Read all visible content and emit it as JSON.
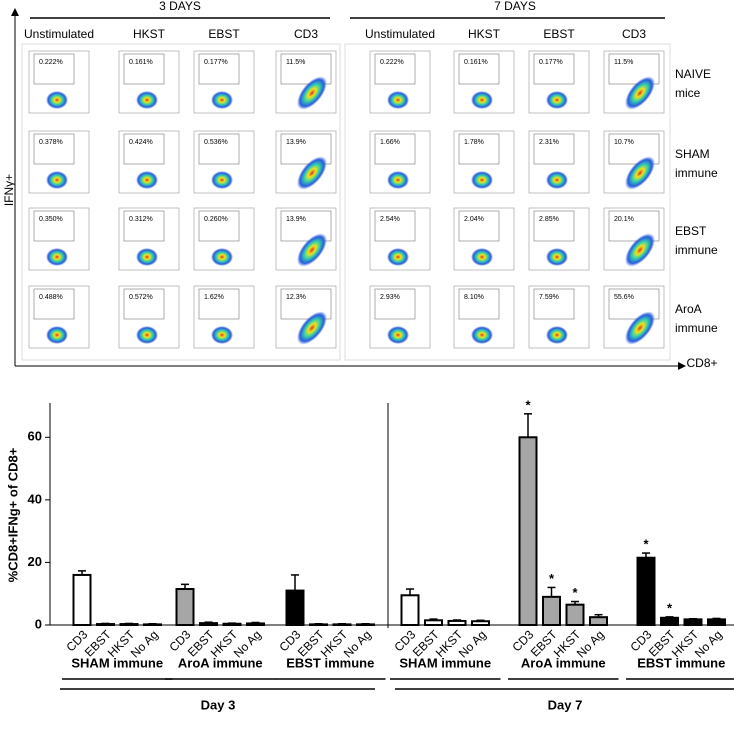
{
  "flow_panel": {
    "y_label": "IFNγ+",
    "x_label": "CD8+",
    "blocks": [
      {
        "title": "3 DAYS",
        "columns": [
          "Unstimulated",
          "HKST",
          "EBST",
          "CD3"
        ]
      },
      {
        "title": "7 DAYS",
        "columns": [
          "Unstimulated",
          "HKST",
          "EBST",
          "CD3"
        ]
      }
    ],
    "rows": [
      {
        "label": [
          "NAIVE",
          "mice"
        ],
        "gates": [
          "0.222%",
          "0.161%",
          "0.177%",
          "11.5%",
          "0.222%",
          "0.161%",
          "0.177%",
          "11.5%"
        ]
      },
      {
        "label": [
          "SHAM",
          "immune"
        ],
        "gates": [
          "0.378%",
          "0.424%",
          "0.536%",
          "13.9%",
          "1.66%",
          "1.78%",
          "2.31%",
          "10.7%"
        ]
      },
      {
        "label": [
          "EBST",
          "immune"
        ],
        "gates": [
          "0.350%",
          "0.312%",
          "0.260%",
          "13.9%",
          "2.54%",
          "2.04%",
          "2.85%",
          "20.1%"
        ]
      },
      {
        "label": [
          "AroA",
          "immune"
        ],
        "gates": [
          "0.488%",
          "0.572%",
          "1.62%",
          "12.3%",
          "2.93%",
          "8.10%",
          "7.59%",
          "55.6%"
        ]
      }
    ]
  },
  "chart_data": {
    "type": "bar",
    "ylabel": "%CD8+IFNg+ of CD8+",
    "ylim": [
      0,
      70
    ],
    "yticks": [
      0,
      20,
      40,
      60
    ],
    "annotation": "*",
    "days": [
      {
        "label": "Day 3",
        "groups": [
          {
            "name": "SHAM immune",
            "color": "#ffffff",
            "categories": [
              "CD3",
              "EBST",
              "HKST",
              "No Ag"
            ],
            "values": [
              16,
              0.3,
              0.3,
              0.2
            ],
            "errors": [
              1.3,
              0.2,
              0.2,
              0.2
            ],
            "starred": [
              false,
              false,
              false,
              false
            ]
          },
          {
            "name": "AroA immune",
            "color": "#a6a6a6",
            "categories": [
              "CD3",
              "EBST",
              "HKST",
              "No Ag"
            ],
            "values": [
              11.5,
              0.6,
              0.4,
              0.5
            ],
            "errors": [
              1.5,
              0.3,
              0.2,
              0.3
            ],
            "starred": [
              false,
              false,
              false,
              false
            ]
          },
          {
            "name": "EBST immune",
            "color": "#000000",
            "categories": [
              "CD3",
              "EBST",
              "HKST",
              "No Ag"
            ],
            "values": [
              11,
              0.2,
              0.2,
              0.2
            ],
            "errors": [
              5,
              0.2,
              0.2,
              0.2
            ],
            "starred": [
              false,
              false,
              false,
              false
            ]
          }
        ]
      },
      {
        "label": "Day 7",
        "groups": [
          {
            "name": "SHAM immune",
            "color": "#ffffff",
            "categories": [
              "CD3",
              "EBST",
              "HKST",
              "No Ag"
            ],
            "values": [
              9.5,
              1.5,
              1.3,
              1.2
            ],
            "errors": [
              2,
              0.4,
              0.3,
              0.3
            ],
            "starred": [
              false,
              false,
              false,
              false
            ]
          },
          {
            "name": "AroA immune",
            "color": "#a6a6a6",
            "categories": [
              "CD3",
              "EBST",
              "HKST",
              "No Ag"
            ],
            "values": [
              60,
              9,
              6.5,
              2.5
            ],
            "errors": [
              7.5,
              3,
              1,
              0.8
            ],
            "starred": [
              true,
              true,
              true,
              false
            ]
          },
          {
            "name": "EBST immune",
            "color": "#000000",
            "categories": [
              "CD3",
              "EBST",
              "HKST",
              "No Ag"
            ],
            "values": [
              21.5,
              2.3,
              1.8,
              1.8
            ],
            "errors": [
              1.5,
              0.3,
              0.2,
              0.3
            ],
            "starred": [
              true,
              true,
              false,
              false
            ]
          }
        ]
      }
    ]
  }
}
